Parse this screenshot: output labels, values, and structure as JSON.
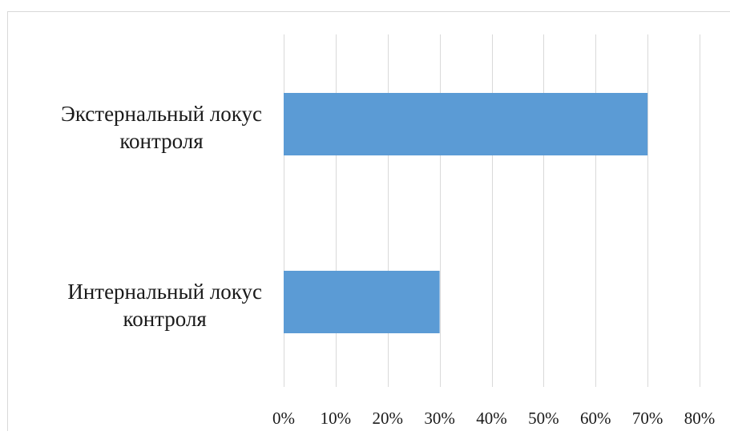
{
  "chart_data": {
    "type": "bar",
    "orientation": "horizontal",
    "categories": [
      [
        "Экстернальный локус",
        "контроля"
      ],
      [
        "Интернальный локус",
        "контроля"
      ]
    ],
    "values": [
      70,
      30
    ],
    "x_tick_labels": [
      "0%",
      "10%",
      "20%",
      "30%",
      "40%",
      "50%",
      "60%",
      "70%",
      "80%"
    ],
    "xlim": [
      0,
      80
    ],
    "unit": "%",
    "grid": "vertical",
    "legend": "none",
    "title": "",
    "xlabel": "",
    "ylabel": "",
    "bar_color": "#5b9bd5",
    "grid_color": "#d9d9d9",
    "border_color": "#d9d9d9"
  }
}
